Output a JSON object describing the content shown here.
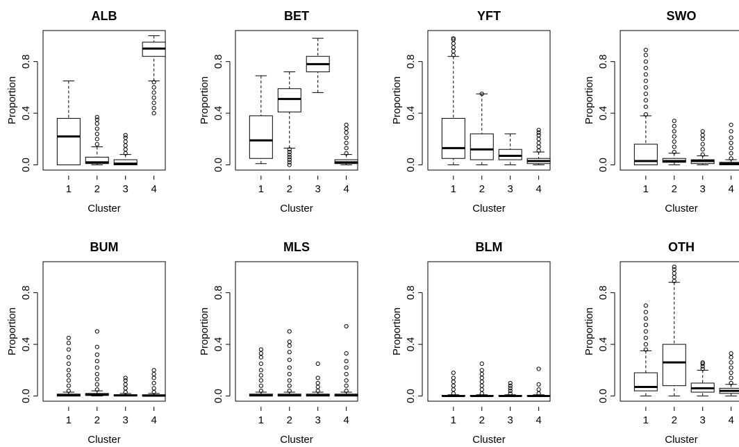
{
  "chart_data": [
    {
      "type": "box",
      "title": "ALB",
      "x_label": "Cluster",
      "y_label": "Proportion",
      "categories": [
        "1",
        "2",
        "3",
        "4"
      ],
      "ylim": [
        -0.04,
        1.04
      ],
      "yticks": [
        {
          "value": 0,
          "label": "0.0"
        },
        0.4,
        0.8
      ],
      "color": "#000000",
      "boxes": [
        {
          "min": 0,
          "q1": 0,
          "median": 0.22,
          "q3": 0.36,
          "max": 0.65,
          "outliers": []
        },
        {
          "min": 0,
          "q1": 0.01,
          "median": 0.02,
          "q3": 0.06,
          "max": 0.14,
          "outliers": [
            0.16,
            0.2,
            0.24,
            0.28,
            0.32,
            0.35,
            0.37
          ]
        },
        {
          "min": 0,
          "q1": 0,
          "median": 0.01,
          "q3": 0.04,
          "max": 0.08,
          "outliers": [
            0.09,
            0.12,
            0.15,
            0.18,
            0.21,
            0.23
          ]
        },
        {
          "min": 0.65,
          "q1": 0.84,
          "median": 0.9,
          "q3": 0.95,
          "max": 1.0,
          "outliers": [
            0.4,
            0.44,
            0.48,
            0.52,
            0.56,
            0.6,
            0.64
          ]
        }
      ]
    },
    {
      "type": "box",
      "title": "BET",
      "x_label": "Cluster",
      "y_label": "Proportion",
      "categories": [
        "1",
        "2",
        "3",
        "4"
      ],
      "ylim": [
        -0.04,
        1.04
      ],
      "yticks": [
        {
          "value": 0,
          "label": "0.0"
        },
        0.4,
        0.8
      ],
      "color": "#000000",
      "boxes": [
        {
          "min": 0.01,
          "q1": 0.05,
          "median": 0.19,
          "q3": 0.38,
          "max": 0.69,
          "outliers": []
        },
        {
          "min": 0.13,
          "q1": 0.41,
          "median": 0.51,
          "q3": 0.59,
          "max": 0.72,
          "outliers": [
            0,
            0.02,
            0.04,
            0.06,
            0.08,
            0.1,
            0.12
          ]
        },
        {
          "min": 0.56,
          "q1": 0.72,
          "median": 0.78,
          "q3": 0.84,
          "max": 0.98,
          "outliers": []
        },
        {
          "min": 0,
          "q1": 0.01,
          "median": 0.02,
          "q3": 0.04,
          "max": 0.08,
          "outliers": [
            0.09,
            0.13,
            0.17,
            0.21,
            0.25,
            0.28,
            0.31
          ]
        }
      ]
    },
    {
      "type": "box",
      "title": "YFT",
      "x_label": "Cluster",
      "y_label": "Proportion",
      "categories": [
        "1",
        "2",
        "3",
        "4"
      ],
      "ylim": [
        -0.04,
        1.04
      ],
      "yticks": [
        {
          "value": 0,
          "label": "0.0"
        },
        0.4,
        0.8
      ],
      "color": "#000000",
      "boxes": [
        {
          "min": 0,
          "q1": 0.05,
          "median": 0.13,
          "q3": 0.36,
          "max": 0.84,
          "outliers": [
            0.85,
            0.88,
            0.91,
            0.94,
            0.97,
            0.98
          ]
        },
        {
          "min": 0,
          "q1": 0.04,
          "median": 0.12,
          "q3": 0.24,
          "max": 0.55,
          "outliers": [
            0.55
          ]
        },
        {
          "min": 0,
          "q1": 0.04,
          "median": 0.07,
          "q3": 0.12,
          "max": 0.24,
          "outliers": []
        },
        {
          "min": 0,
          "q1": 0.01,
          "median": 0.03,
          "q3": 0.05,
          "max": 0.1,
          "outliers": [
            0.11,
            0.14,
            0.17,
            0.2,
            0.23,
            0.25,
            0.27
          ]
        }
      ]
    },
    {
      "type": "box",
      "title": "SWO",
      "x_label": "Cluster",
      "y_label": "Proportion",
      "categories": [
        "1",
        "2",
        "3",
        "4"
      ],
      "ylim": [
        -0.04,
        1.04
      ],
      "yticks": [
        {
          "value": 0,
          "label": "0.0"
        },
        0.4,
        0.8
      ],
      "color": "#000000",
      "boxes": [
        {
          "min": 0,
          "q1": 0,
          "median": 0.03,
          "q3": 0.16,
          "max": 0.38,
          "outliers": [
            0.39,
            0.45,
            0.5,
            0.55,
            0.6,
            0.65,
            0.7,
            0.75,
            0.8,
            0.85,
            0.89
          ]
        },
        {
          "min": 0,
          "q1": 0.02,
          "median": 0.03,
          "q3": 0.05,
          "max": 0.09,
          "outliers": [
            0.1,
            0.14,
            0.18,
            0.22,
            0.26,
            0.3,
            0.34
          ]
        },
        {
          "min": 0,
          "q1": 0.01,
          "median": 0.03,
          "q3": 0.04,
          "max": 0.07,
          "outliers": [
            0.08,
            0.12,
            0.16,
            0.2,
            0.23,
            0.26
          ]
        },
        {
          "min": 0,
          "q1": 0,
          "median": 0.01,
          "q3": 0.02,
          "max": 0.04,
          "outliers": [
            0.05,
            0.09,
            0.13,
            0.17,
            0.21,
            0.26,
            0.31
          ]
        }
      ]
    },
    {
      "type": "box",
      "title": "BUM",
      "x_label": "Cluster",
      "y_label": "Proportion",
      "categories": [
        "1",
        "2",
        "3",
        "4"
      ],
      "ylim": [
        -0.04,
        1.04
      ],
      "yticks": [
        {
          "value": 0,
          "label": "0.0"
        },
        0.4,
        0.8
      ],
      "color": "#000000",
      "boxes": [
        {
          "min": 0,
          "q1": 0,
          "median": 0.005,
          "q3": 0.015,
          "max": 0.03,
          "outliers": [
            0.04,
            0.08,
            0.12,
            0.16,
            0.2,
            0.25,
            0.3,
            0.36,
            0.41,
            0.45
          ]
        },
        {
          "min": 0,
          "q1": 0.005,
          "median": 0.01,
          "q3": 0.02,
          "max": 0.04,
          "outliers": [
            0.05,
            0.09,
            0.13,
            0.17,
            0.22,
            0.27,
            0.32,
            0.38,
            0.5
          ]
        },
        {
          "min": 0,
          "q1": 0,
          "median": 0.005,
          "q3": 0.01,
          "max": 0.02,
          "outliers": [
            0.03,
            0.06,
            0.09,
            0.12,
            0.14
          ]
        },
        {
          "min": 0,
          "q1": 0,
          "median": 0.003,
          "q3": 0.01,
          "max": 0.02,
          "outliers": [
            0.03,
            0.06,
            0.1,
            0.14,
            0.17,
            0.2
          ]
        }
      ]
    },
    {
      "type": "box",
      "title": "MLS",
      "x_label": "Cluster",
      "y_label": "Proportion",
      "categories": [
        "1",
        "2",
        "3",
        "4"
      ],
      "ylim": [
        -0.04,
        1.04
      ],
      "yticks": [
        {
          "value": 0,
          "label": "0.0"
        },
        0.4,
        0.8
      ],
      "color": "#000000",
      "boxes": [
        {
          "min": 0,
          "q1": 0,
          "median": 0.005,
          "q3": 0.015,
          "max": 0.03,
          "outliers": [
            0.04,
            0.08,
            0.12,
            0.16,
            0.2,
            0.25,
            0.3,
            0.33,
            0.36
          ]
        },
        {
          "min": 0,
          "q1": 0,
          "median": 0.005,
          "q3": 0.015,
          "max": 0.03,
          "outliers": [
            0.04,
            0.08,
            0.12,
            0.17,
            0.22,
            0.28,
            0.34,
            0.39,
            0.42,
            0.5
          ]
        },
        {
          "min": 0,
          "q1": 0,
          "median": 0.005,
          "q3": 0.015,
          "max": 0.03,
          "outliers": [
            0.04,
            0.07,
            0.1,
            0.14,
            0.25
          ]
        },
        {
          "min": 0,
          "q1": 0,
          "median": 0.005,
          "q3": 0.015,
          "max": 0.03,
          "outliers": [
            0.04,
            0.08,
            0.12,
            0.17,
            0.22,
            0.27,
            0.33,
            0.54
          ]
        }
      ]
    },
    {
      "type": "box",
      "title": "BLM",
      "x_label": "Cluster",
      "y_label": "Proportion",
      "categories": [
        "1",
        "2",
        "3",
        "4"
      ],
      "ylim": [
        -0.04,
        1.04
      ],
      "yticks": [
        {
          "value": 0,
          "label": "0.0"
        },
        0.4,
        0.8
      ],
      "color": "#000000",
      "boxes": [
        {
          "min": 0,
          "q1": 0,
          "median": 0,
          "q3": 0.005,
          "max": 0.01,
          "outliers": [
            0.02,
            0.05,
            0.08,
            0.11,
            0.14,
            0.18
          ]
        },
        {
          "min": 0,
          "q1": 0,
          "median": 0,
          "q3": 0.005,
          "max": 0.01,
          "outliers": [
            0.02,
            0.05,
            0.08,
            0.11,
            0.14,
            0.17,
            0.2,
            0.25
          ]
        },
        {
          "min": 0,
          "q1": 0,
          "median": 0,
          "q3": 0.005,
          "max": 0.01,
          "outliers": [
            0.02,
            0.04,
            0.06,
            0.08,
            0.1
          ]
        },
        {
          "min": 0,
          "q1": 0,
          "median": 0,
          "q3": 0.005,
          "max": 0.01,
          "outliers": [
            0.02,
            0.05,
            0.09,
            0.21
          ]
        }
      ]
    },
    {
      "type": "box",
      "title": "OTH",
      "x_label": "Cluster",
      "y_label": "Proportion",
      "categories": [
        "1",
        "2",
        "3",
        "4"
      ],
      "ylim": [
        -0.04,
        1.04
      ],
      "yticks": [
        {
          "value": 0,
          "label": "0.0"
        },
        0.4,
        0.8
      ],
      "color": "#000000",
      "boxes": [
        {
          "min": 0,
          "q1": 0.04,
          "median": 0.07,
          "q3": 0.18,
          "max": 0.35,
          "outliers": [
            0.36,
            0.4,
            0.45,
            0.5,
            0.55,
            0.6,
            0.65,
            0.7
          ]
        },
        {
          "min": 0,
          "q1": 0.08,
          "median": 0.26,
          "q3": 0.4,
          "max": 0.88,
          "outliers": [
            0.89,
            0.92,
            0.95,
            0.98,
            1.0
          ]
        },
        {
          "min": 0,
          "q1": 0.03,
          "median": 0.06,
          "q3": 0.1,
          "max": 0.2,
          "outliers": [
            0.21,
            0.23,
            0.25,
            0.26
          ]
        },
        {
          "min": 0,
          "q1": 0.02,
          "median": 0.04,
          "q3": 0.06,
          "max": 0.09,
          "outliers": [
            0.1,
            0.14,
            0.18,
            0.22,
            0.26,
            0.3,
            0.33
          ]
        }
      ]
    }
  ]
}
